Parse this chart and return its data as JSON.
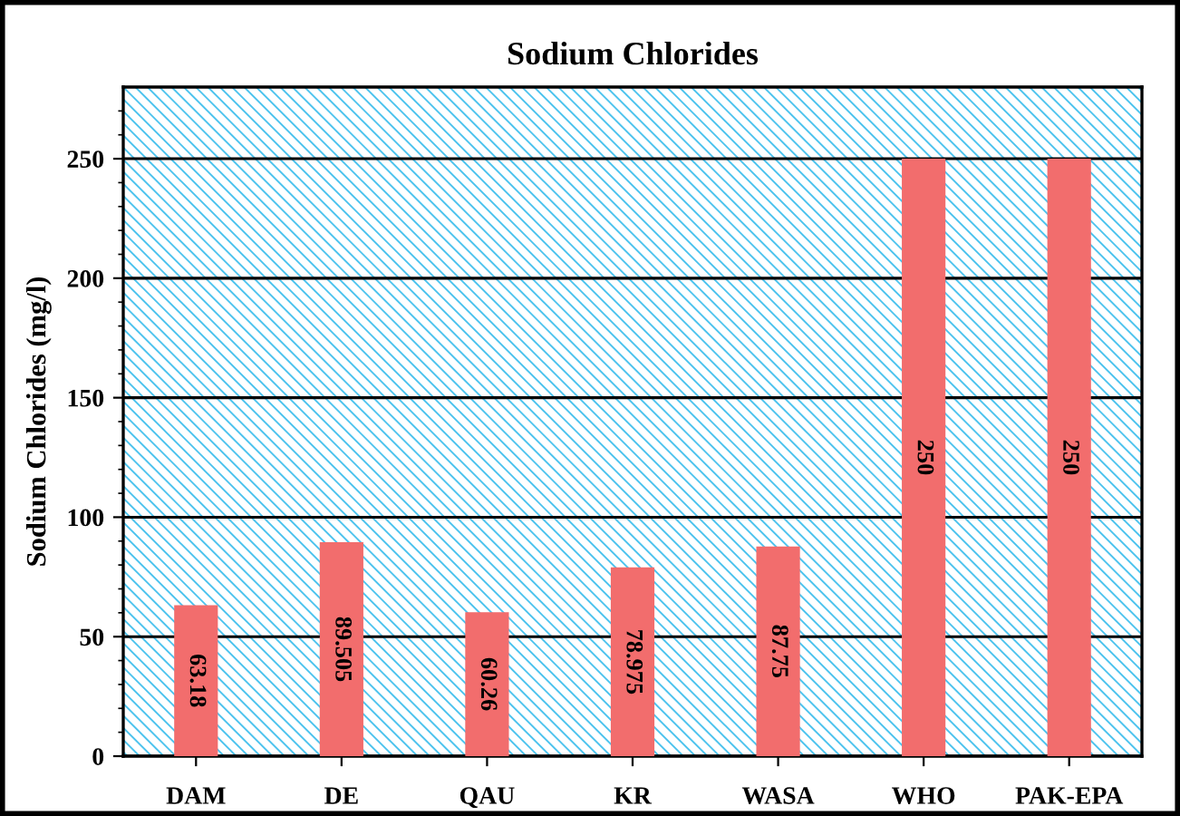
{
  "chart_data": {
    "type": "bar",
    "title": "Sodium Chlorides",
    "ylabel": "Sodium Chlorides (mg/l)",
    "categories": [
      "DAM",
      "DE",
      "QAU",
      "KR",
      "WASA",
      "WHO",
      "PAK-EPA"
    ],
    "values": [
      63.18,
      89.505,
      60.26,
      78.975,
      87.75,
      250,
      250
    ],
    "color": "#f26d6d",
    "ylim": [
      0,
      280
    ],
    "yticks": [
      0,
      {
        "value": 10,
        "label": null
      },
      {
        "value": 20,
        "label": null
      },
      {
        "value": 30,
        "label": null
      },
      {
        "value": 40,
        "label": null
      },
      50,
      {
        "value": 60,
        "label": null
      },
      {
        "value": 70,
        "label": null
      },
      {
        "value": 80,
        "label": null
      },
      {
        "value": 90,
        "label": null
      },
      100,
      {
        "value": 110,
        "label": null
      },
      {
        "value": 120,
        "label": null
      },
      {
        "value": 130,
        "label": null
      },
      {
        "value": 140,
        "label": null
      },
      150,
      {
        "value": 160,
        "label": null
      },
      {
        "value": 170,
        "label": null
      },
      {
        "value": 180,
        "label": null
      },
      {
        "value": 190,
        "label": null
      },
      200,
      {
        "value": 210,
        "label": null
      },
      {
        "value": 220,
        "label": null
      },
      {
        "value": 230,
        "label": null
      },
      {
        "value": 240,
        "label": null
      },
      250,
      {
        "value": 260,
        "label": null
      },
      {
        "value": 270,
        "label": null
      }
    ],
    "grid": "y",
    "data_labels": true
  }
}
